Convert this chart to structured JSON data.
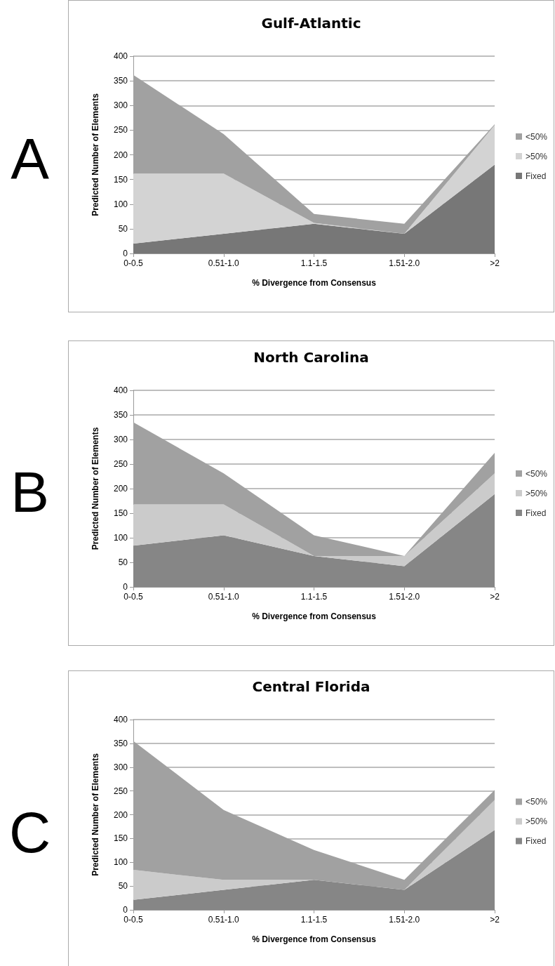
{
  "chart_data": [
    {
      "type": "area",
      "title": "Gulf-Atlantic",
      "xlabel": "% Divergence from Consensus",
      "ylabel": "Predicted Number of Elements",
      "annotations": [
        "A"
      ],
      "categories": [
        "0-0.5",
        "0.51-1.0",
        "1.1-1.5",
        "1.51-2.0",
        ">2"
      ],
      "stacked": true,
      "ylim": [
        0,
        400
      ],
      "yticks": [
        0,
        50,
        100,
        150,
        200,
        250,
        300,
        350,
        400
      ],
      "grid": "y",
      "legend": "right",
      "series": [
        {
          "name": "Fixed",
          "color": "#777777",
          "values": [
            20,
            40,
            60,
            40,
            180
          ]
        },
        {
          "name": ">50%",
          "color": "#d3d3d3",
          "values": [
            142,
            122,
            2,
            0,
            80
          ]
        },
        {
          "name": "<50%",
          "color": "#a1a1a1",
          "values": [
            200,
            80,
            18,
            20,
            2
          ]
        }
      ]
    },
    {
      "type": "area",
      "title": "North Carolina",
      "xlabel": "% Divergence from Consensus",
      "ylabel": "Predicted Number of Elements",
      "annotations": [
        "B"
      ],
      "categories": [
        "0-0.5",
        "0.51-1.0",
        "1.1-1.5",
        "1.51-2.0",
        ">2"
      ],
      "stacked": true,
      "ylim": [
        0,
        400
      ],
      "yticks": [
        0,
        50,
        100,
        150,
        200,
        250,
        300,
        350,
        400
      ],
      "grid": "y",
      "legend": "right",
      "series": [
        {
          "name": "Fixed",
          "color": "#868686",
          "values": [
            84,
            105,
            63,
            42,
            189
          ]
        },
        {
          "name": ">50%",
          "color": "#cbcbcb",
          "values": [
            84,
            63,
            0,
            21,
            42
          ]
        },
        {
          "name": "<50%",
          "color": "#a1a1a1",
          "values": [
            167,
            63,
            42,
            0,
            42
          ]
        }
      ]
    },
    {
      "type": "area",
      "title": "Central Florida",
      "xlabel": "% Divergence from Consensus",
      "ylabel": "Predicted Number of Elements",
      "annotations": [
        "C"
      ],
      "categories": [
        "0-0.5",
        "0.51-1.0",
        "1.1-1.5",
        "1.51-2.0",
        ">2"
      ],
      "stacked": true,
      "ylim": [
        0,
        400
      ],
      "yticks": [
        0,
        50,
        100,
        150,
        200,
        250,
        300,
        350,
        400
      ],
      "grid": "y",
      "legend": "right",
      "series": [
        {
          "name": "Fixed",
          "color": "#868686",
          "values": [
            21,
            42,
            63,
            42,
            168
          ]
        },
        {
          "name": ">50%",
          "color": "#cbcbcb",
          "values": [
            63,
            21,
            0,
            0,
            63
          ]
        },
        {
          "name": "<50%",
          "color": "#a1a1a1",
          "values": [
            271,
            147,
            63,
            21,
            21
          ]
        }
      ]
    }
  ]
}
